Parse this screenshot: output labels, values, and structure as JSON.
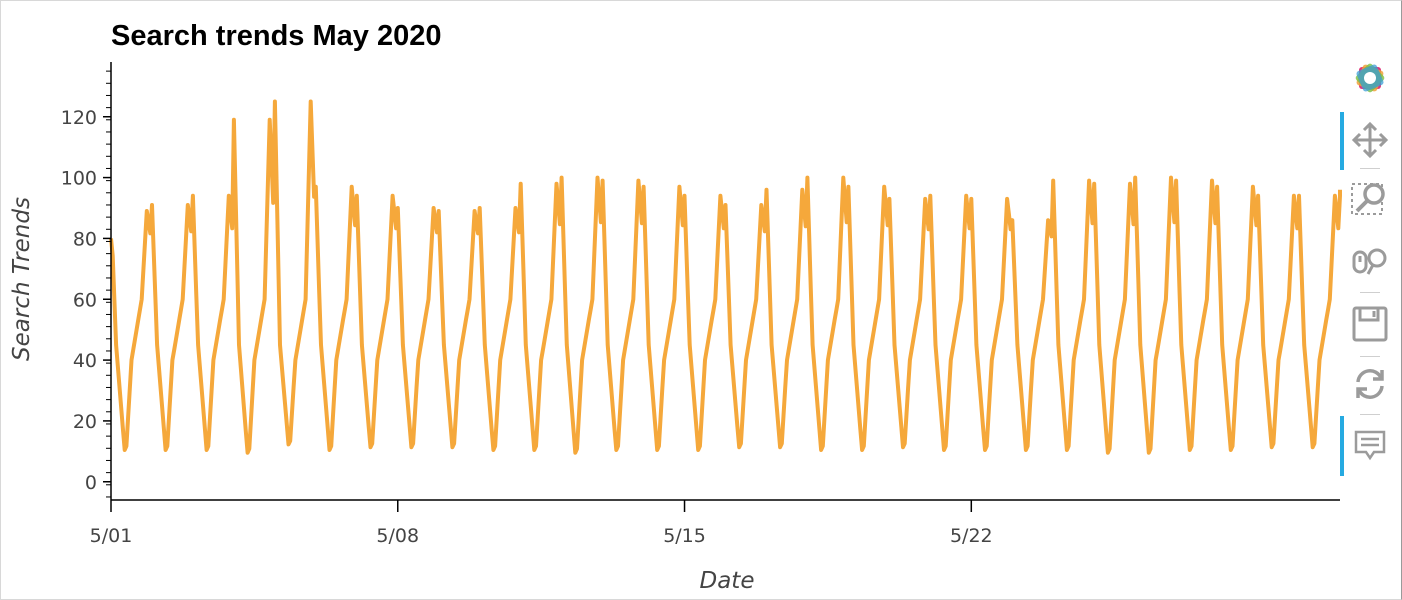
{
  "chart_data": {
    "type": "line",
    "title": "Search trends May 2020",
    "xlabel": "Date",
    "ylabel": "Search Trends",
    "xlim": [
      "2020-05-01",
      "2020-05-31T00:00"
    ],
    "ylim": [
      -6,
      138
    ],
    "yticks": [
      0,
      20,
      40,
      60,
      80,
      100,
      120
    ],
    "xticks": [
      {
        "value": "2020-05-01",
        "label": "5/01"
      },
      {
        "value": "2020-05-08",
        "label": "5/08"
      },
      {
        "value": "2020-05-15",
        "label": "5/15"
      },
      {
        "value": "2020-05-22",
        "label": "5/22"
      }
    ],
    "grid": false,
    "line_color": "#f5a83b",
    "series": [
      {
        "name": "",
        "daily_peaks": [
          {
            "date": "2020-05-01",
            "peak": 89,
            "trough": 7
          },
          {
            "date": "2020-05-02",
            "peak": 91,
            "trough": 7
          },
          {
            "date": "2020-05-03",
            "peak": 94,
            "trough": 7
          },
          {
            "date": "2020-05-04",
            "peak": 119,
            "trough": 6
          },
          {
            "date": "2020-05-05",
            "peak": 125,
            "trough": 9
          },
          {
            "date": "2020-05-06",
            "peak": 97,
            "trough": 7
          },
          {
            "date": "2020-05-07",
            "peak": 94,
            "trough": 8
          },
          {
            "date": "2020-05-08",
            "peak": 90,
            "trough": 8
          },
          {
            "date": "2020-05-09",
            "peak": 89,
            "trough": 8
          },
          {
            "date": "2020-05-10",
            "peak": 90,
            "trough": 7
          },
          {
            "date": "2020-05-11",
            "peak": 98,
            "trough": 7
          },
          {
            "date": "2020-05-12",
            "peak": 100,
            "trough": 6
          },
          {
            "date": "2020-05-13",
            "peak": 99,
            "trough": 7
          },
          {
            "date": "2020-05-14",
            "peak": 97,
            "trough": 7
          },
          {
            "date": "2020-05-15",
            "peak": 94,
            "trough": 7
          },
          {
            "date": "2020-05-16",
            "peak": 91,
            "trough": 8
          },
          {
            "date": "2020-05-17",
            "peak": 96,
            "trough": 8
          },
          {
            "date": "2020-05-18",
            "peak": 100,
            "trough": 7
          },
          {
            "date": "2020-05-19",
            "peak": 97,
            "trough": 7
          },
          {
            "date": "2020-05-20",
            "peak": 93,
            "trough": 8
          },
          {
            "date": "2020-05-21",
            "peak": 94,
            "trough": 7
          },
          {
            "date": "2020-05-22",
            "peak": 93,
            "trough": 7
          },
          {
            "date": "2020-05-23",
            "peak": 86,
            "trough": 7
          },
          {
            "date": "2020-05-24",
            "peak": 99,
            "trough": 7
          },
          {
            "date": "2020-05-25",
            "peak": 98,
            "trough": 6
          },
          {
            "date": "2020-05-26",
            "peak": 100,
            "trough": 6
          },
          {
            "date": "2020-05-27",
            "peak": 99,
            "trough": 7
          },
          {
            "date": "2020-05-28",
            "peak": 97,
            "trough": 7
          },
          {
            "date": "2020-05-29",
            "peak": 94,
            "trough": 8
          },
          {
            "date": "2020-05-30",
            "peak": 94,
            "trough": 8
          }
        ],
        "start_value": 80,
        "end_value": 96
      }
    ]
  },
  "toolbar": {
    "tools": [
      {
        "name": "bokeh-logo-icon",
        "active": false
      },
      {
        "name": "pan-icon",
        "active": true
      },
      {
        "name": "box-zoom-icon",
        "active": false
      },
      {
        "name": "wheel-zoom-icon",
        "active": false
      },
      {
        "name": "save-icon",
        "active": false
      },
      {
        "name": "reset-icon",
        "active": false
      },
      {
        "name": "hover-icon",
        "active": true
      }
    ]
  }
}
